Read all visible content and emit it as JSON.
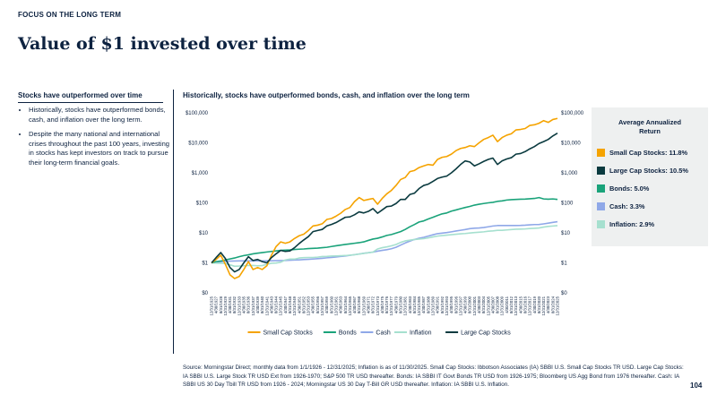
{
  "header": {
    "eyebrow": "FOCUS ON THE LONG TERM",
    "title": "Value of $1 invested over time"
  },
  "sidebar": {
    "heading": "Stocks have outperformed over time",
    "bullets": [
      "Historically, stocks have outperformed bonds, cash, and inflation over the long term.",
      "Despite the many national and international crises throughout the past 100 years, investing in stocks has kept investors on track to pursue their long-term financial goals."
    ]
  },
  "chart_data": {
    "type": "line",
    "title": "Historically, stocks have outperformed bonds, cash, and inflation over the long term",
    "log_scale": true,
    "grid": false,
    "legend": "bottom",
    "categories": [
      "12/31/1925",
      "4/30/1927",
      "8/31/1928",
      "12/31/1929",
      "4/30/1931",
      "8/31/1932",
      "12/31/1933",
      "4/30/1935",
      "8/31/1936",
      "12/31/1937",
      "4/30/1939",
      "8/31/1940",
      "12/31/1941",
      "4/30/1943",
      "8/31/1944",
      "12/31/1945",
      "4/30/1947",
      "8/31/1948",
      "12/31/1949",
      "4/30/1951",
      "8/31/1952",
      "12/31/1953",
      "4/30/1955",
      "8/31/1956",
      "12/31/1957",
      "4/30/1959",
      "8/31/1960",
      "12/31/1961",
      "4/30/1963",
      "8/31/1964",
      "12/31/1965",
      "4/30/1967",
      "8/31/1968",
      "12/31/1969",
      "4/30/1971",
      "8/31/1972",
      "12/31/1973",
      "4/30/1975",
      "8/31/1976",
      "12/31/1977",
      "4/30/1979",
      "8/31/1980",
      "12/31/1981",
      "4/30/1983",
      "8/31/1984",
      "12/31/1985",
      "4/30/1987",
      "8/31/1988",
      "12/31/1989",
      "4/30/1991",
      "8/31/1992",
      "12/31/1993",
      "4/30/1995",
      "8/31/1996",
      "12/31/1997",
      "4/30/1999",
      "8/31/2000",
      "12/31/2001",
      "4/30/2003",
      "8/31/2004",
      "12/31/2005",
      "4/30/2007",
      "8/31/2008",
      "12/31/2009",
      "4/30/2011",
      "8/31/2012",
      "12/31/2013",
      "4/30/2015",
      "8/31/2016",
      "12/31/2017",
      "4/30/2019",
      "8/31/2020",
      "12/31/2021",
      "4/30/2023",
      "8/31/2024",
      "12/31/2025"
    ],
    "series": [
      {
        "name": "Small Cap Stocks",
        "color": "#f5a300",
        "values": [
          1,
          1.3,
          1.8,
          0.9,
          0.4,
          0.3,
          0.35,
          0.6,
          1.1,
          0.6,
          0.7,
          0.6,
          0.8,
          1.8,
          3.5,
          5,
          4.5,
          5,
          6.5,
          8,
          9,
          12,
          17,
          18,
          20,
          28,
          30,
          36,
          45,
          60,
          70,
          110,
          150,
          120,
          130,
          140,
          90,
          140,
          200,
          260,
          380,
          600,
          700,
          1100,
          1200,
          1500,
          1700,
          1900,
          1800,
          2800,
          3300,
          3500,
          4200,
          5500,
          6500,
          7000,
          8000,
          7500,
          10000,
          13000,
          15000,
          18000,
          11000,
          15000,
          18000,
          20000,
          27000,
          28000,
          30000,
          38000,
          40000,
          45000,
          55000,
          48000,
          60000,
          65000
        ]
      },
      {
        "name": "Bonds",
        "color": "#1aa37a",
        "values": [
          1,
          1.1,
          1.15,
          1.25,
          1.35,
          1.45,
          1.6,
          1.75,
          1.85,
          2.0,
          2.1,
          2.2,
          2.3,
          2.4,
          2.5,
          2.6,
          2.65,
          2.7,
          2.8,
          2.85,
          2.9,
          3.0,
          3.05,
          3.1,
          3.2,
          3.3,
          3.5,
          3.7,
          3.9,
          4.1,
          4.3,
          4.5,
          4.7,
          5.0,
          5.6,
          6.2,
          6.6,
          7.3,
          8.2,
          8.8,
          9.8,
          11,
          13,
          16,
          19,
          23,
          25,
          29,
          33,
          38,
          43,
          46,
          53,
          58,
          64,
          70,
          76,
          84,
          90,
          95,
          100,
          104,
          112,
          116,
          124,
          128,
          130,
          132,
          133,
          137,
          140,
          150,
          135,
          132,
          135,
          130
        ]
      },
      {
        "name": "Cash",
        "color": "#8fa8e8",
        "values": [
          1,
          1.04,
          1.08,
          1.12,
          1.14,
          1.15,
          1.16,
          1.16,
          1.16,
          1.16,
          1.16,
          1.16,
          1.17,
          1.17,
          1.18,
          1.19,
          1.2,
          1.22,
          1.24,
          1.26,
          1.29,
          1.31,
          1.34,
          1.38,
          1.42,
          1.47,
          1.52,
          1.57,
          1.63,
          1.7,
          1.78,
          1.87,
          1.97,
          2.08,
          2.18,
          2.28,
          2.45,
          2.6,
          2.75,
          2.95,
          3.3,
          3.9,
          4.6,
          5.3,
          6.0,
          6.6,
          7.1,
          7.8,
          8.6,
          9.4,
          9.8,
          10.2,
          10.8,
          11.5,
          12.2,
          12.9,
          13.8,
          14.3,
          14.5,
          15.0,
          15.9,
          16.9,
          17.5,
          17.5,
          17.5,
          17.5,
          17.6,
          17.7,
          18.0,
          18.5,
          18.9,
          19.0,
          19.9,
          21.0,
          22.3,
          23.5
        ]
      },
      {
        "name": "Inflation",
        "color": "#a6e0cf",
        "values": [
          1,
          0.98,
          0.97,
          0.95,
          0.86,
          0.77,
          0.78,
          0.8,
          0.82,
          0.82,
          0.8,
          0.81,
          0.9,
          0.97,
          0.99,
          1.05,
          1.25,
          1.34,
          1.33,
          1.45,
          1.49,
          1.51,
          1.51,
          1.55,
          1.62,
          1.64,
          1.68,
          1.7,
          1.72,
          1.75,
          1.8,
          1.86,
          1.96,
          2.07,
          2.17,
          2.27,
          2.9,
          3.2,
          3.4,
          3.7,
          4.1,
          4.8,
          5.4,
          5.7,
          6.0,
          6.2,
          6.4,
          6.8,
          7.3,
          7.8,
          8.1,
          8.4,
          8.7,
          9.0,
          9.3,
          9.5,
          9.9,
          10.2,
          10.5,
          10.8,
          11.3,
          11.6,
          12.1,
          12.1,
          12.5,
          12.9,
          13.2,
          13.3,
          13.5,
          13.9,
          14.2,
          14.5,
          15.6,
          16.4,
          16.9,
          17.4
        ]
      },
      {
        "name": "Large Cap Stocks",
        "color": "#0a3a3f",
        "values": [
          1,
          1.5,
          2.2,
          1.4,
          0.7,
          0.5,
          0.6,
          1.0,
          1.6,
          1.2,
          1.3,
          1.1,
          1.0,
          1.5,
          2.0,
          2.6,
          2.4,
          2.5,
          3.2,
          4.4,
          5.8,
          7.5,
          11,
          12,
          13,
          17,
          19,
          22,
          27,
          33,
          34,
          40,
          50,
          46,
          52,
          64,
          45,
          58,
          75,
          78,
          95,
          130,
          130,
          190,
          210,
          300,
          380,
          420,
          520,
          650,
          720,
          780,
          1000,
          1350,
          1900,
          2500,
          2300,
          1700,
          2000,
          2400,
          2800,
          3100,
          1900,
          2500,
          2900,
          3200,
          4200,
          4400,
          5100,
          6300,
          7500,
          9500,
          11000,
          13000,
          17000,
          21000
        ]
      }
    ],
    "ylim": [
      0.1,
      100000
    ],
    "yticks": [
      {
        "value": 0.1,
        "label": "$0"
      },
      {
        "value": 1,
        "label": "$1"
      },
      {
        "value": 10,
        "label": "$10"
      },
      {
        "value": 100,
        "label": "$100"
      },
      {
        "value": 1000,
        "label": "$1,000"
      },
      {
        "value": 10000,
        "label": "$10,000"
      },
      {
        "value": 100000,
        "label": "$100,000"
      }
    ],
    "y2lim": [
      0.1,
      100000
    ],
    "y2ticks": [
      {
        "value": 0.1,
        "label": "$0"
      },
      {
        "value": 1,
        "label": "$1"
      },
      {
        "value": 10,
        "label": "$10"
      },
      {
        "value": 100,
        "label": "$100"
      },
      {
        "value": 1000,
        "label": "$1,000"
      },
      {
        "value": 10000,
        "label": "$10,000"
      },
      {
        "value": 100000,
        "label": "$100,000"
      }
    ]
  },
  "return_panel": {
    "title": "Average Annualized Return",
    "items": [
      {
        "label": "Small Cap Stocks: 11.8%",
        "color": "#f5a300"
      },
      {
        "label": "Large Cap Stocks: 10.5%",
        "color": "#0a3a3f"
      },
      {
        "label": "Bonds: 5.0%",
        "color": "#1aa37a"
      },
      {
        "label": "Cash: 3.3%",
        "color": "#8fa8e8"
      },
      {
        "label": "Inflation: 2.9%",
        "color": "#a6e0cf"
      }
    ]
  },
  "footer": {
    "source": "Source: Morningstar Direct; monthly data from 1/1/1926 - 12/31/2025; Inflation is as of 11/30/2025. Small Cap Stocks: Ibbotson Associates (IA) SBBI U.S. Small Cap Stocks TR USD. Large Cap Stocks: IA SBBI U.S. Large Stock TR USD Ext from 1926-1970; S&P 500 TR USD thereafter. Bonds: IA SBBI IT Govt Bonds TR USD from 1926-1975; Bloomberg US Agg Bond from 1976 thereafter. Cash: IA SBBI US 30 Day Tbill TR USD from 1926 - 2024; Morningstar US 30 Day T-Bill GR USD thereafter. Inflation: IA SBBI U.S. Inflation.",
    "page": "104"
  }
}
